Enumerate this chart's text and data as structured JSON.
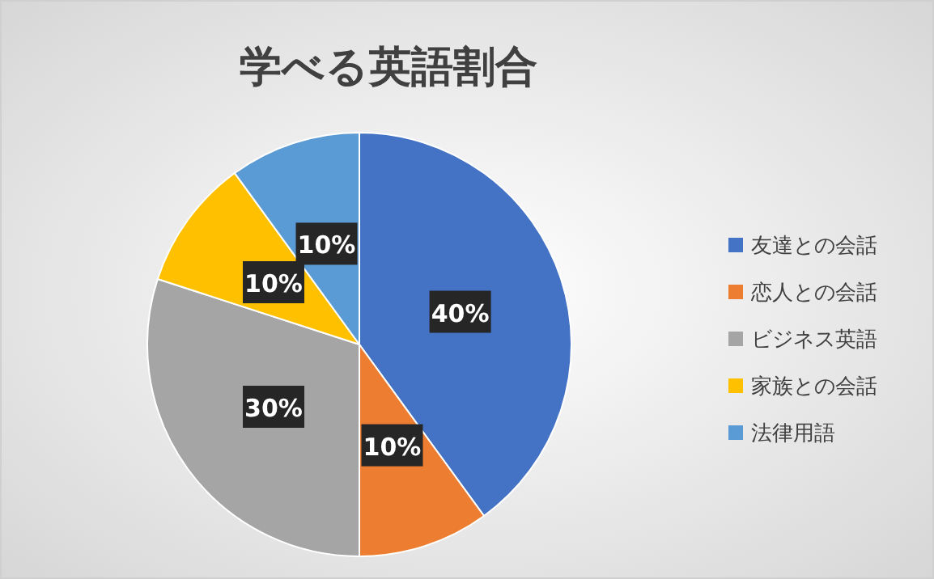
{
  "chart_data": {
    "type": "pie",
    "title": "学べる英語割合",
    "categories": [
      "友達との会話",
      "恋人との会話",
      "ビジネス英語",
      "家族との会話",
      "法律用語"
    ],
    "values": [
      40,
      10,
      30,
      10,
      10
    ],
    "colors": [
      "#4472c4",
      "#ed7d31",
      "#a5a5a5",
      "#ffc000",
      "#5b9bd5"
    ],
    "value_labels": [
      "40%",
      "10%",
      "30%",
      "10%",
      "10%"
    ],
    "legend": "right"
  }
}
